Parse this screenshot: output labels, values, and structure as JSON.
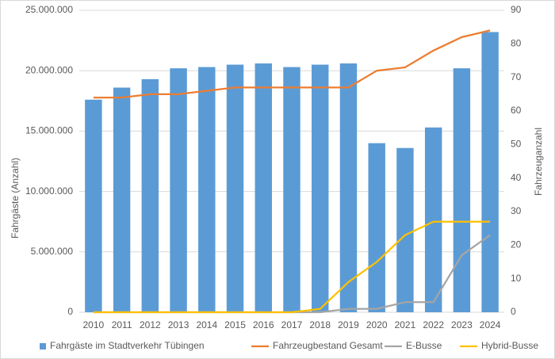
{
  "chart_data": {
    "type": "bar",
    "y_label": "Fahrgäste (Anzahl)",
    "y2_label": "Fahrzeuganzahl",
    "categories": [
      "2010",
      "2011",
      "2012",
      "2013",
      "2014",
      "2015",
      "2016",
      "2017",
      "2018",
      "2019",
      "2020",
      "2021",
      "2022",
      "2023",
      "2024"
    ],
    "series": [
      {
        "name": "Fahrgäste im Stadtverkehr Tübingen",
        "type": "bar",
        "color": "#5b9bd5",
        "values": [
          17600000,
          18600000,
          19300000,
          20200000,
          20300000,
          20500000,
          20600000,
          20300000,
          20500000,
          20600000,
          14000000,
          13600000,
          15300000,
          20200000,
          23200000
        ]
      },
      {
        "name": "Fahrzeugbestand Gesamt",
        "type": "line",
        "axis": "y2",
        "color": "#ed7d31",
        "values": [
          64,
          64,
          65,
          65,
          66,
          67,
          67,
          67,
          67,
          67,
          72,
          73,
          78,
          82,
          84
        ]
      },
      {
        "name": "E-Busse",
        "type": "line",
        "axis": "y2",
        "color": "#a5a5a5",
        "values": [
          0,
          0,
          0,
          0,
          0,
          0,
          0,
          0,
          0,
          1,
          1,
          3,
          3,
          17,
          23
        ]
      },
      {
        "name": "Hybrid-Busse",
        "type": "line",
        "axis": "y2",
        "color": "#ffc000",
        "values": [
          0,
          0,
          0,
          0,
          0,
          0,
          0,
          0,
          1,
          9,
          15,
          23,
          27,
          27,
          27
        ]
      }
    ],
    "ylim": [
      0,
      25000000
    ],
    "yticks": [
      0,
      {
        "value": 5000000,
        "label": "5.000.000"
      },
      {
        "value": 10000000,
        "label": "10.000.000"
      },
      {
        "value": 15000000,
        "label": "15.000.000"
      },
      {
        "value": 20000000,
        "label": "20.000.000"
      },
      {
        "value": 25000000,
        "label": "25.000.000"
      }
    ],
    "y2lim": [
      0,
      90
    ],
    "y2ticks": [
      0,
      10,
      20,
      30,
      40,
      50,
      60,
      70,
      80,
      90
    ],
    "grid": true
  }
}
